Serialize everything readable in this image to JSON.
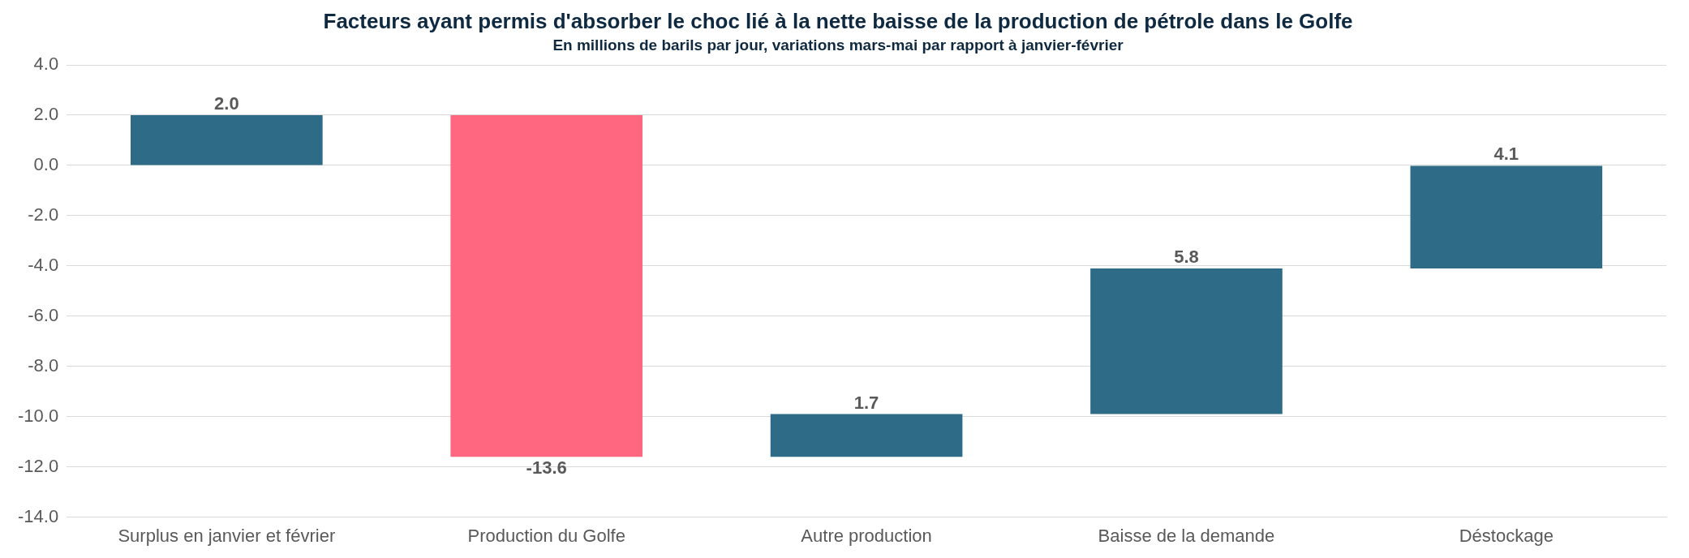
{
  "chart_data": {
    "type": "bar",
    "title": "Facteurs ayant permis d'absorber le choc lié à la nette baisse de la production de pétrole dans le Golfe",
    "subtitle": "En millions de barils par jour, variations mars-mai par rapport à janvier-février",
    "categories": [
      "Surplus en janvier et février",
      "Production du Golfe",
      "Autre production",
      "Baisse de la demande",
      "Déstockage"
    ],
    "values": [
      2.0,
      -13.6,
      1.7,
      5.8,
      4.1
    ],
    "base": [
      0,
      2.0,
      -11.6,
      -9.9,
      -4.1
    ],
    "colors": [
      "#2e6b87",
      "#ff6680",
      "#2e6b87",
      "#2e6b87",
      "#2e6b87"
    ],
    "value_labels": [
      "2.0",
      "-13.6",
      "1.7",
      "5.8",
      "4.1"
    ],
    "ylim": [
      -14,
      4
    ],
    "yticks": [
      {
        "value": -14,
        "label": "-14.0"
      },
      {
        "value": -12,
        "label": "-12.0"
      },
      {
        "value": -10,
        "label": "-10.0"
      },
      {
        "value": -8,
        "label": "-8.0"
      },
      {
        "value": -6,
        "label": "-6.0"
      },
      {
        "value": -4,
        "label": "-4.0"
      },
      {
        "value": -2,
        "label": "-2.0"
      },
      {
        "value": 0,
        "label": "0.0"
      },
      {
        "value": 2,
        "label": "2.0"
      },
      {
        "value": 4,
        "label": "4.0"
      }
    ],
    "grid": "y",
    "legend": false
  }
}
